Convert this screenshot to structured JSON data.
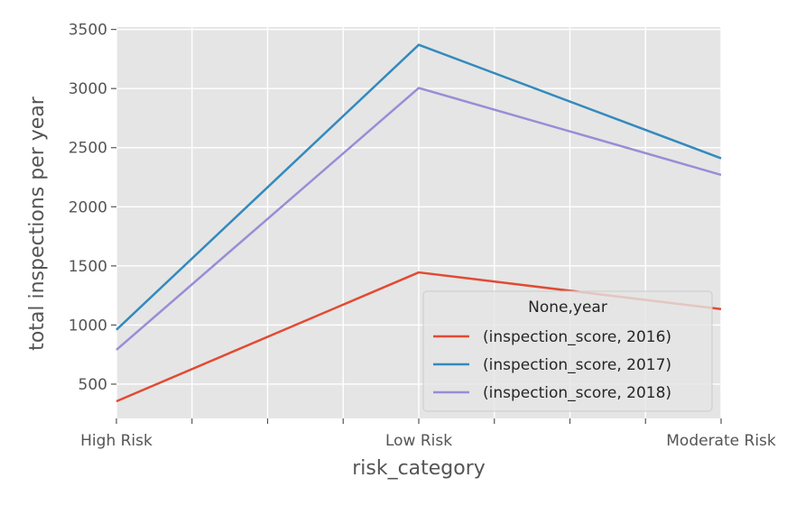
{
  "chart_data": {
    "type": "line",
    "title": "",
    "xlabel": "risk_category",
    "ylabel": "total inspections per year",
    "categories": [
      "High Risk",
      "Low Risk",
      "Moderate Risk"
    ],
    "ylim": [
      210,
      3520
    ],
    "yticks": [
      500,
      1000,
      1500,
      2000,
      2500,
      3000,
      3500
    ],
    "grid": true,
    "legend": {
      "title": "None,year",
      "placement": "lower-right"
    },
    "series": [
      {
        "name": "(inspection_score, 2016)",
        "color": "#E24A33",
        "values": [
          355,
          1445,
          1135
        ]
      },
      {
        "name": "(inspection_score, 2017)",
        "color": "#348ABD",
        "values": [
          960,
          3370,
          2410
        ]
      },
      {
        "name": "(inspection_score, 2018)",
        "color": "#988ED5",
        "values": [
          790,
          3005,
          2270
        ]
      }
    ]
  }
}
